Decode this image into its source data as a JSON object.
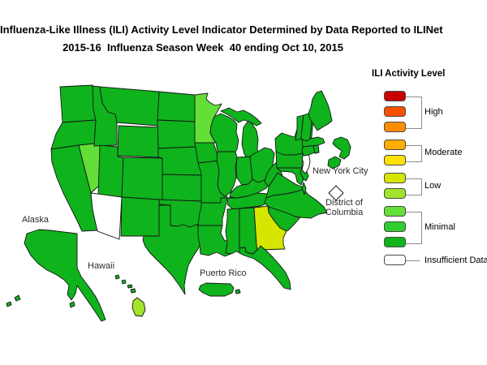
{
  "title": {
    "line1": "Influenza-Like Illness (ILI) Activity Level Indicator Determined by Data Reported to ILINet",
    "line2": "2015-16  Influenza Season Week  40 ending Oct 10, 2015"
  },
  "legend": {
    "title": "ILI Activity Level",
    "swatches": [
      {
        "level": 10,
        "color": "#C80000",
        "group": "High"
      },
      {
        "level": 9,
        "color": "#F94F00",
        "group": "High"
      },
      {
        "level": 8,
        "color": "#FC8D00",
        "group": "High"
      },
      {
        "level": 7,
        "color": "#FFAE00",
        "group": "Moderate"
      },
      {
        "level": 6,
        "color": "#FFE205",
        "group": "Moderate"
      },
      {
        "level": 5,
        "color": "#D7E600",
        "group": "Low"
      },
      {
        "level": 4,
        "color": "#A2E32B",
        "group": "Low"
      },
      {
        "level": 3,
        "color": "#63DF38",
        "group": "Minimal"
      },
      {
        "level": 2,
        "color": "#2FCE2F",
        "group": "Minimal"
      },
      {
        "level": 1,
        "color": "#0FB31C",
        "group": "Minimal"
      },
      {
        "level": 0,
        "color": "#FFFFFF",
        "group": "Insufficient Data"
      }
    ],
    "groups": [
      {
        "label": "High",
        "start": 0,
        "end": 2
      },
      {
        "label": "Moderate",
        "start": 3,
        "end": 4
      },
      {
        "label": "Low",
        "start": 5,
        "end": 6
      },
      {
        "label": "Minimal",
        "start": 7,
        "end": 9
      },
      {
        "label": "Insufficient Data",
        "start": 10,
        "end": 10
      }
    ]
  },
  "map": {
    "labels": {
      "alaska": "Alaska",
      "hawaii": "Hawaii",
      "puerto_rico": "Puerto Rico",
      "new_york_city": "New York City",
      "district_of_columbia": "District of Columbia"
    },
    "level_colors": {
      "0": "#FFFFFF",
      "1": "#0FB31C",
      "2": "#2FCE2F",
      "3": "#63DF38",
      "4": "#A2E32B",
      "5": "#D7E600",
      "6": "#FFE205",
      "7": "#FFAE00",
      "8": "#FC8D00",
      "9": "#F94F00",
      "10": "#C80000"
    },
    "state_levels": {
      "WA": 1,
      "OR": 1,
      "CA": 1,
      "NV": 3,
      "ID": 1,
      "MT": 1,
      "WY": 1,
      "UT": 1,
      "CO": 1,
      "AZ": 0,
      "NM": 1,
      "ND": 1,
      "SD": 1,
      "NE": 1,
      "KS": 1,
      "OK": 1,
      "TX": 1,
      "MN": 3,
      "IA": 1,
      "MO": 1,
      "AR": 1,
      "LA": 1,
      "WI": 1,
      "IL": 1,
      "MI_UP": 1,
      "MI": 1,
      "IN": 1,
      "OH": 1,
      "KY": 1,
      "TN": 1,
      "MS": 1,
      "AL": 1,
      "GA": 5,
      "FL": 1,
      "SC": 1,
      "NC": 1,
      "VA": 1,
      "VA_ES": 1,
      "WV": 1,
      "MD": 1,
      "DE": 1,
      "NJ": 0,
      "PA": 1,
      "NY": 1,
      "CT": 1,
      "RI": 1,
      "MA": 1,
      "VT": 1,
      "NH": 1,
      "ME": 1,
      "CAPE_COD": 1,
      "LONG_ISLAND": 1,
      "DC": 0,
      "AK": 1,
      "AK_KODIAK": 1,
      "AK_ALEUTIAN_1": 1,
      "AK_ALEUTIAN_2": 1,
      "HI_KAUAI": 1,
      "HI_OAHU": 1,
      "HI_MOLOKAI": 1,
      "HI_MAUI": 1,
      "HI_BIG_ISLAND": 4,
      "PR": 1,
      "PR_VIEQUES": 1
    }
  }
}
